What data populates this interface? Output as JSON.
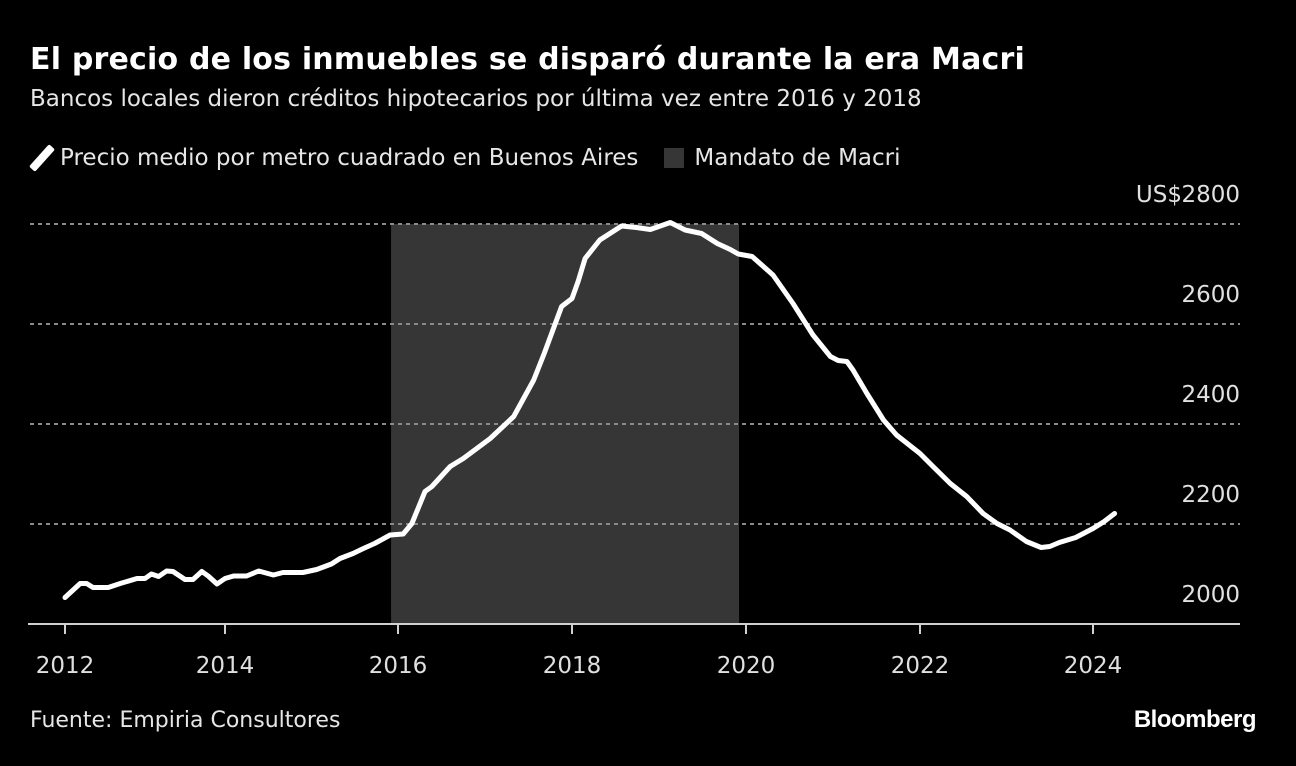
{
  "header": {
    "title": "El precio de los inmuebles se disparó durante la era Macri",
    "subtitle": "Bancos locales dieron créditos hipotecarios por última vez entre 2016 y 2018"
  },
  "legend": {
    "series_label": "Precio medio por metro cuadrado en Buenos Aires",
    "shade_label": "Mandato de Macri",
    "series_color": "#ffffff",
    "shade_color": "#363636"
  },
  "footer": {
    "source": "Fuente: Empiria Consultores",
    "brand": "Bloomberg"
  },
  "chart_data": {
    "type": "line",
    "title": "El precio de los inmuebles se disparó durante la era Macri",
    "subtitle": "Bancos locales dieron créditos hipotecarios por última vez entre 2016 y 2018",
    "y_unit": "US$",
    "ylim": [
      2000,
      2800
    ],
    "y_ticks": [
      "2000",
      "2200",
      "2400",
      "2600",
      "2800"
    ],
    "x_ticks": [
      "2012",
      "2014",
      "2016",
      "2018",
      "2020",
      "2022",
      "2024"
    ],
    "grid": "horizontal dotted",
    "background": "#000000",
    "shaded_region": {
      "name": "Mandato de Macri",
      "start": 2015.92,
      "end": 2019.92,
      "color": "#363636"
    },
    "series": [
      {
        "name": "Precio medio por metro cuadrado en Buenos Aires",
        "color": "#ffffff",
        "x": [
          2012.0,
          2012.19,
          2012.27,
          2012.35,
          2012.54,
          2012.69,
          2012.9,
          2013.0,
          2013.08,
          2013.17,
          2013.27,
          2013.35,
          2013.5,
          2013.6,
          2013.71,
          2013.79,
          2013.9,
          2014.0,
          2014.1,
          2014.25,
          2014.39,
          2014.56,
          2014.67,
          2014.9,
          2015.06,
          2015.23,
          2015.33,
          2015.48,
          2015.6,
          2015.73,
          2015.91,
          2016.06,
          2016.16,
          2016.31,
          2016.39,
          2016.6,
          2016.75,
          2017.06,
          2017.33,
          2017.56,
          2017.68,
          2017.88,
          2018.0,
          2018.07,
          2018.15,
          2018.32,
          2018.57,
          2018.74,
          2018.9,
          2019.13,
          2019.3,
          2019.49,
          2019.67,
          2019.82,
          2019.91,
          2020.07,
          2020.31,
          2020.54,
          2020.77,
          2020.97,
          2021.06,
          2021.16,
          2021.23,
          2021.39,
          2021.58,
          2021.73,
          2022.0,
          2022.15,
          2022.35,
          2022.54,
          2022.73,
          2022.89,
          2023.04,
          2023.23,
          2023.4,
          2023.5,
          2023.61,
          2023.8,
          2024.0,
          2024.13,
          2024.25
        ],
        "values": [
          2053,
          2081,
          2081,
          2073,
          2073,
          2081,
          2091,
          2091,
          2100,
          2095,
          2106,
          2105,
          2089,
          2089,
          2105,
          2096,
          2080,
          2091,
          2096,
          2096,
          2106,
          2098,
          2103,
          2103,
          2109,
          2120,
          2131,
          2141,
          2151,
          2161,
          2178,
          2180,
          2201,
          2265,
          2275,
          2315,
          2331,
          2371,
          2415,
          2488,
          2541,
          2635,
          2651,
          2685,
          2731,
          2768,
          2796,
          2793,
          2789,
          2803,
          2788,
          2781,
          2761,
          2749,
          2740,
          2735,
          2698,
          2641,
          2578,
          2535,
          2527,
          2525,
          2508,
          2461,
          2408,
          2378,
          2341,
          2315,
          2281,
          2255,
          2221,
          2201,
          2188,
          2165,
          2153,
          2155,
          2163,
          2173,
          2191,
          2205,
          2221
        ]
      }
    ]
  }
}
